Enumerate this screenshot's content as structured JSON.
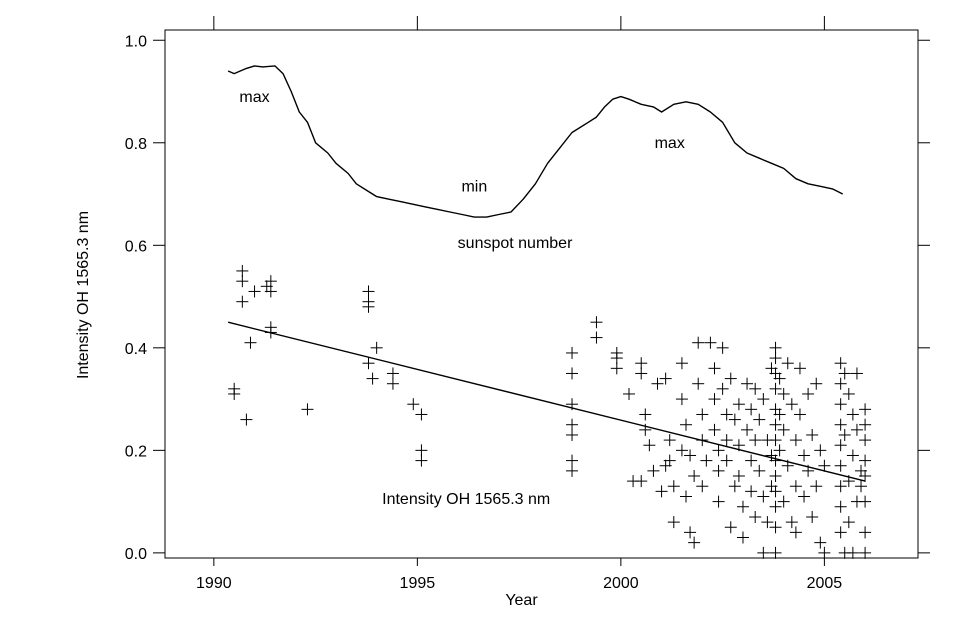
{
  "chart_data": {
    "type": "scatter",
    "xlabel": "Year",
    "ylabel": "Intensity OH 1565.3 nm",
    "xlim": [
      1988.8,
      2007.3
    ],
    "ylim": [
      -0.01,
      1.02
    ],
    "x_ticks": [
      1990,
      1995,
      2000,
      2005
    ],
    "x_tick_labels": [
      "1990",
      "1995",
      "2000",
      "2005"
    ],
    "y_ticks": [
      0.0,
      0.2,
      0.4,
      0.6,
      0.8,
      1.0
    ],
    "y_tick_labels": [
      "0.0",
      "0.2",
      "0.4",
      "0.6",
      "0.8",
      "1.0"
    ],
    "grid": false,
    "annotations": [
      {
        "text": "max",
        "x": 1991.0,
        "y": 0.88
      },
      {
        "text": "min",
        "x": 1996.4,
        "y": 0.705
      },
      {
        "text": "max",
        "x": 2001.2,
        "y": 0.79
      },
      {
        "text": "sunspot number",
        "x": 1997.4,
        "y": 0.595
      },
      {
        "text": "Intensity OH 1565.3 nm",
        "x": 1996.2,
        "y": 0.095
      }
    ],
    "series": [
      {
        "type": "line",
        "x": [
          1990.35,
          1990.5,
          1990.8,
          1991.0,
          1991.2,
          1991.5,
          1991.7,
          1991.9,
          1992.1,
          1992.3,
          1992.5,
          1992.8,
          1993.0,
          1993.3,
          1993.5,
          1993.8,
          1994.0,
          1994.3,
          1994.6,
          1994.9,
          1995.2,
          1995.5,
          1995.8,
          1996.1,
          1996.4,
          1996.7,
          1997.0,
          1997.3,
          1997.6,
          1997.9,
          1998.2,
          1998.5,
          1998.8,
          1999.0,
          1999.2,
          1999.4,
          1999.6,
          1999.8,
          2000.0,
          2000.2,
          2000.5,
          2000.8,
          2001.0,
          2001.3,
          2001.6,
          2001.9,
          2002.2,
          2002.5,
          2002.8,
          2003.1,
          2003.4,
          2003.7,
          2004.0,
          2004.3,
          2004.6,
          2004.9,
          2005.2,
          2005.45
        ],
        "y": [
          0.94,
          0.935,
          0.945,
          0.95,
          0.948,
          0.95,
          0.935,
          0.9,
          0.86,
          0.84,
          0.8,
          0.78,
          0.76,
          0.74,
          0.72,
          0.705,
          0.695,
          0.69,
          0.685,
          0.68,
          0.675,
          0.67,
          0.665,
          0.66,
          0.655,
          0.655,
          0.66,
          0.665,
          0.69,
          0.72,
          0.76,
          0.79,
          0.82,
          0.83,
          0.84,
          0.85,
          0.87,
          0.885,
          0.89,
          0.885,
          0.875,
          0.87,
          0.86,
          0.875,
          0.88,
          0.875,
          0.86,
          0.84,
          0.8,
          0.78,
          0.77,
          0.76,
          0.75,
          0.73,
          0.72,
          0.715,
          0.71,
          0.7
        ]
      },
      {
        "type": "line",
        "x": [
          1990.35,
          2006.0
        ],
        "y": [
          0.45,
          0.14
        ]
      },
      {
        "type": "scatter",
        "marker": "+",
        "points": [
          [
            1990.5,
            0.32
          ],
          [
            1990.5,
            0.31
          ],
          [
            1990.7,
            0.55
          ],
          [
            1990.7,
            0.53
          ],
          [
            1990.7,
            0.49
          ],
          [
            1990.8,
            0.26
          ],
          [
            1990.9,
            0.41
          ],
          [
            1991.0,
            0.51
          ],
          [
            1991.3,
            0.52
          ],
          [
            1991.4,
            0.51
          ],
          [
            1991.4,
            0.53
          ],
          [
            1991.4,
            0.44
          ],
          [
            1991.4,
            0.43
          ],
          [
            1992.3,
            0.28
          ],
          [
            1993.8,
            0.51
          ],
          [
            1993.8,
            0.49
          ],
          [
            1993.8,
            0.48
          ],
          [
            1993.8,
            0.37
          ],
          [
            1993.9,
            0.34
          ],
          [
            1994.0,
            0.4
          ],
          [
            1994.4,
            0.35
          ],
          [
            1994.4,
            0.33
          ],
          [
            1994.9,
            0.29
          ],
          [
            1995.1,
            0.27
          ],
          [
            1995.1,
            0.2
          ],
          [
            1995.1,
            0.18
          ],
          [
            1998.8,
            0.39
          ],
          [
            1998.8,
            0.35
          ],
          [
            1998.8,
            0.29
          ],
          [
            1998.8,
            0.25
          ],
          [
            1998.8,
            0.23
          ],
          [
            1998.8,
            0.18
          ],
          [
            1998.8,
            0.16
          ],
          [
            1999.4,
            0.45
          ],
          [
            1999.4,
            0.42
          ],
          [
            1999.9,
            0.39
          ],
          [
            1999.9,
            0.38
          ],
          [
            1999.9,
            0.36
          ],
          [
            2000.2,
            0.31
          ],
          [
            2000.3,
            0.14
          ],
          [
            2000.5,
            0.14
          ],
          [
            2000.5,
            0.37
          ],
          [
            2000.5,
            0.35
          ],
          [
            2000.6,
            0.27
          ],
          [
            2000.6,
            0.24
          ],
          [
            2000.7,
            0.21
          ],
          [
            2000.8,
            0.16
          ],
          [
            2000.9,
            0.33
          ],
          [
            2001.0,
            0.12
          ],
          [
            2001.1,
            0.34
          ],
          [
            2001.1,
            0.17
          ],
          [
            2001.2,
            0.22
          ],
          [
            2001.2,
            0.18
          ],
          [
            2001.3,
            0.13
          ],
          [
            2001.3,
            0.06
          ],
          [
            2001.5,
            0.37
          ],
          [
            2001.5,
            0.3
          ],
          [
            2001.5,
            0.2
          ],
          [
            2001.6,
            0.25
          ],
          [
            2001.6,
            0.11
          ],
          [
            2001.7,
            0.04
          ],
          [
            2001.8,
            0.02
          ],
          [
            2001.7,
            0.19
          ],
          [
            2001.8,
            0.15
          ],
          [
            2001.9,
            0.41
          ],
          [
            2001.9,
            0.33
          ],
          [
            2002.0,
            0.27
          ],
          [
            2002.0,
            0.22
          ],
          [
            2002.0,
            0.13
          ],
          [
            2002.1,
            0.18
          ],
          [
            2002.2,
            0.41
          ],
          [
            2002.3,
            0.36
          ],
          [
            2002.3,
            0.3
          ],
          [
            2002.3,
            0.24
          ],
          [
            2002.4,
            0.2
          ],
          [
            2002.4,
            0.16
          ],
          [
            2002.4,
            0.1
          ],
          [
            2002.5,
            0.4
          ],
          [
            2002.5,
            0.32
          ],
          [
            2002.6,
            0.27
          ],
          [
            2002.6,
            0.22
          ],
          [
            2002.6,
            0.18
          ],
          [
            2002.7,
            0.34
          ],
          [
            2002.7,
            0.05
          ],
          [
            2002.8,
            0.26
          ],
          [
            2002.8,
            0.13
          ],
          [
            2002.9,
            0.29
          ],
          [
            2002.9,
            0.21
          ],
          [
            2002.9,
            0.15
          ],
          [
            2003.0,
            0.09
          ],
          [
            2003.0,
            0.03
          ],
          [
            2003.1,
            0.33
          ],
          [
            2003.1,
            0.24
          ],
          [
            2003.2,
            0.28
          ],
          [
            2003.2,
            0.18
          ],
          [
            2003.2,
            0.12
          ],
          [
            2003.3,
            0.32
          ],
          [
            2003.3,
            0.22
          ],
          [
            2003.3,
            0.07
          ],
          [
            2003.4,
            0.26
          ],
          [
            2003.4,
            0.16
          ],
          [
            2003.5,
            0.3
          ],
          [
            2003.5,
            0.11
          ],
          [
            2003.5,
            0.0
          ],
          [
            2003.6,
            0.22
          ],
          [
            2003.6,
            0.06
          ],
          [
            2003.7,
            0.36
          ],
          [
            2003.7,
            0.19
          ],
          [
            2003.7,
            0.13
          ],
          [
            2003.8,
            0.4
          ],
          [
            2003.8,
            0.38
          ],
          [
            2003.8,
            0.35
          ],
          [
            2003.8,
            0.32
          ],
          [
            2003.8,
            0.28
          ],
          [
            2003.8,
            0.25
          ],
          [
            2003.8,
            0.22
          ],
          [
            2003.8,
            0.18
          ],
          [
            2003.8,
            0.15
          ],
          [
            2003.8,
            0.12
          ],
          [
            2003.8,
            0.09
          ],
          [
            2003.8,
            0.05
          ],
          [
            2003.8,
            0.0
          ],
          [
            2003.9,
            0.34
          ],
          [
            2003.9,
            0.27
          ],
          [
            2003.9,
            0.2
          ],
          [
            2004.0,
            0.31
          ],
          [
            2004.0,
            0.24
          ],
          [
            2004.0,
            0.1
          ],
          [
            2004.1,
            0.37
          ],
          [
            2004.1,
            0.17
          ],
          [
            2004.2,
            0.29
          ],
          [
            2004.2,
            0.06
          ],
          [
            2004.3,
            0.22
          ],
          [
            2004.3,
            0.04
          ],
          [
            2004.3,
            0.13
          ],
          [
            2004.4,
            0.36
          ],
          [
            2004.4,
            0.27
          ],
          [
            2004.5,
            0.19
          ],
          [
            2004.5,
            0.11
          ],
          [
            2004.6,
            0.31
          ],
          [
            2004.6,
            0.16
          ],
          [
            2004.7,
            0.23
          ],
          [
            2004.7,
            0.07
          ],
          [
            2004.8,
            0.33
          ],
          [
            2004.8,
            0.13
          ],
          [
            2004.9,
            0.2
          ],
          [
            2004.9,
            0.02
          ],
          [
            2005.0,
            0.17
          ],
          [
            2005.0,
            0.0
          ],
          [
            2005.4,
            0.37
          ],
          [
            2005.4,
            0.33
          ],
          [
            2005.4,
            0.29
          ],
          [
            2005.4,
            0.25
          ],
          [
            2005.4,
            0.21
          ],
          [
            2005.4,
            0.17
          ],
          [
            2005.4,
            0.13
          ],
          [
            2005.4,
            0.09
          ],
          [
            2005.4,
            0.04
          ],
          [
            2005.5,
            0.0
          ],
          [
            2005.5,
            0.35
          ],
          [
            2005.5,
            0.23
          ],
          [
            2005.6,
            0.31
          ],
          [
            2005.6,
            0.14
          ],
          [
            2005.6,
            0.06
          ],
          [
            2005.7,
            0.27
          ],
          [
            2005.7,
            0.19
          ],
          [
            2005.7,
            0.0
          ],
          [
            2005.8,
            0.35
          ],
          [
            2005.8,
            0.24
          ],
          [
            2005.8,
            0.1
          ],
          [
            2005.9,
            0.16
          ],
          [
            2005.9,
            0.13
          ],
          [
            2006.0,
            0.28
          ],
          [
            2006.0,
            0.25
          ],
          [
            2006.0,
            0.22
          ],
          [
            2006.0,
            0.18
          ],
          [
            2006.0,
            0.15
          ],
          [
            2006.0,
            0.1
          ],
          [
            2006.0,
            0.04
          ],
          [
            2006.0,
            0.0
          ]
        ]
      }
    ]
  }
}
